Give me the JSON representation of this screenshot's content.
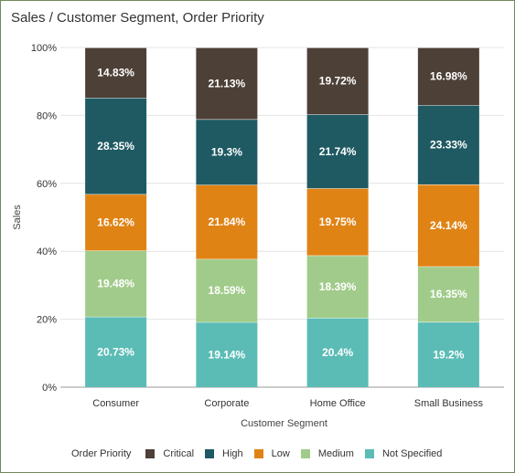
{
  "title": "Sales / Customer Segment, Order Priority",
  "legend_title": "Order Priority",
  "chart_data": {
    "type": "bar",
    "stacked": true,
    "normalized": true,
    "title": "Sales / Customer Segment, Order Priority",
    "xlabel": "Customer Segment",
    "ylabel": "Sales",
    "ylim": [
      0,
      100
    ],
    "yticks": [
      "0%",
      "20%",
      "40%",
      "60%",
      "80%",
      "100%"
    ],
    "grid": true,
    "legend_position": "bottom",
    "categories": [
      "Consumer",
      "Corporate",
      "Home Office",
      "Small Business"
    ],
    "series": [
      {
        "name": "Not Specified",
        "color": "#5bbcb6",
        "values": [
          20.73,
          19.14,
          20.4,
          19.2
        ],
        "labels": [
          "20.73%",
          "19.14%",
          "20.4%",
          "19.2%"
        ]
      },
      {
        "name": "Medium",
        "color": "#a1cb8a",
        "values": [
          19.48,
          18.59,
          18.39,
          16.35
        ],
        "labels": [
          "19.48%",
          "18.59%",
          "18.39%",
          "16.35%"
        ]
      },
      {
        "name": "Low",
        "color": "#e08315",
        "values": [
          16.62,
          21.84,
          19.75,
          24.14
        ],
        "labels": [
          "16.62%",
          "21.84%",
          "19.75%",
          "24.14%"
        ]
      },
      {
        "name": "High",
        "color": "#1f5a63",
        "values": [
          28.35,
          19.3,
          21.74,
          23.33
        ],
        "labels": [
          "28.35%",
          "19.3%",
          "21.74%",
          "23.33%"
        ]
      },
      {
        "name": "Critical",
        "color": "#4d4037",
        "values": [
          14.83,
          21.13,
          19.72,
          16.98
        ],
        "labels": [
          "14.83%",
          "21.13%",
          "19.72%",
          "16.98%"
        ]
      }
    ],
    "legend_order": [
      "Critical",
      "High",
      "Low",
      "Medium",
      "Not Specified"
    ]
  }
}
